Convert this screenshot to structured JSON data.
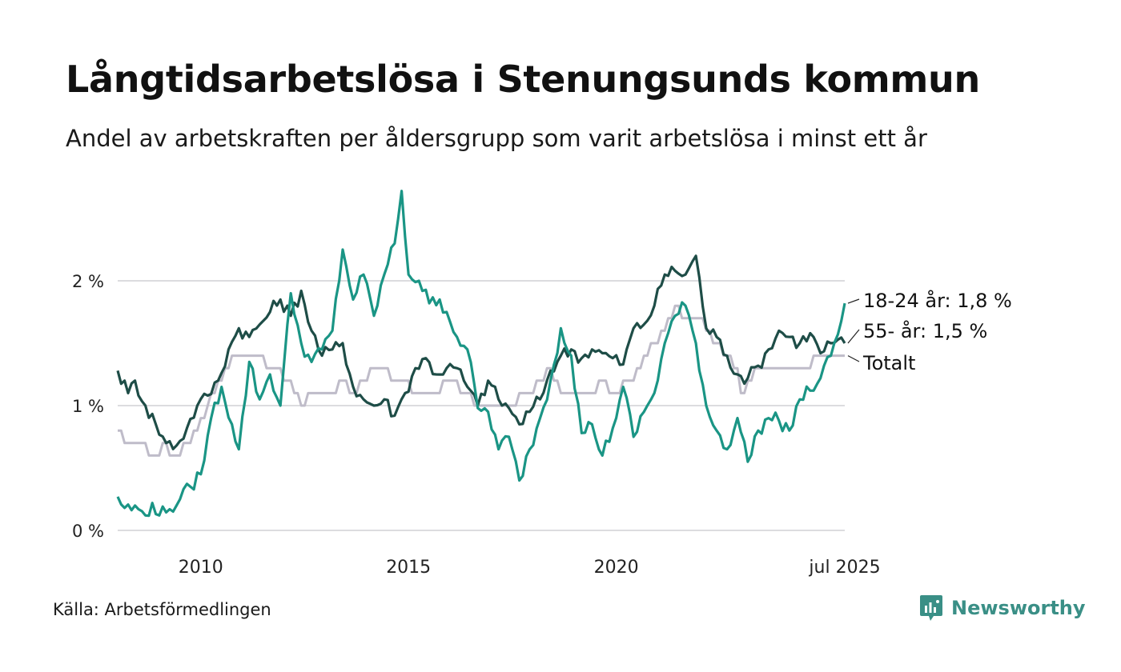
{
  "title": "Långtidsarbetslösa i Stenungsunds kommun",
  "subtitle": "Andel av arbetskraften per åldersgrupp som varit arbetslösa i minst ett år",
  "source": "Källa: Arbetsförmedlingen",
  "brand": {
    "name": "Newsworthy",
    "icon": "newsworthy-logo-icon",
    "color": "#3a8f86"
  },
  "chart_data": {
    "type": "line",
    "x_start": "2008-01",
    "x_end": "2025-07",
    "y_unit": "%",
    "ylim": [
      0,
      2.8
    ],
    "yticks": [
      0,
      1,
      2
    ],
    "ytick_labels": [
      "0 %",
      "1 %",
      "2 %"
    ],
    "xticks": [
      {
        "x": "2010-01",
        "label": "2010"
      },
      {
        "x": "2015-01",
        "label": "2015"
      },
      {
        "x": "2020-01",
        "label": "2020"
      },
      {
        "x": "2025-07",
        "label": "jul 2025"
      }
    ],
    "grid": true,
    "legend": "end-labels",
    "series": [
      {
        "name": "Totalt",
        "end_label": "Totalt",
        "color": "#bfbcc9",
        "anchors": [
          [
            "2008-01",
            0.8
          ],
          [
            "2008-03",
            0.7
          ],
          [
            "2008-09",
            0.7
          ],
          [
            "2008-11",
            0.6
          ],
          [
            "2009-03",
            0.7
          ],
          [
            "2009-05",
            0.6
          ],
          [
            "2009-09",
            0.7
          ],
          [
            "2009-12",
            0.8
          ],
          [
            "2010-03",
            1.0
          ],
          [
            "2010-08",
            1.3
          ],
          [
            "2010-12",
            1.4
          ],
          [
            "2011-06",
            1.4
          ],
          [
            "2011-09",
            1.3
          ],
          [
            "2012-03",
            1.2
          ],
          [
            "2012-06",
            1.0
          ],
          [
            "2012-09",
            1.1
          ],
          [
            "2013-03",
            1.1
          ],
          [
            "2013-06",
            1.2
          ],
          [
            "2013-09",
            1.1
          ],
          [
            "2013-12",
            1.2
          ],
          [
            "2014-03",
            1.3
          ],
          [
            "2014-12",
            1.2
          ],
          [
            "2015-03",
            1.1
          ],
          [
            "2015-09",
            1.1
          ],
          [
            "2016-01",
            1.2
          ],
          [
            "2016-06",
            1.1
          ],
          [
            "2016-09",
            1.0
          ],
          [
            "2017-06",
            1.0
          ],
          [
            "2017-12",
            1.1
          ],
          [
            "2018-06",
            1.3
          ],
          [
            "2018-09",
            1.1
          ],
          [
            "2019-06",
            1.1
          ],
          [
            "2019-09",
            1.2
          ],
          [
            "2019-12",
            1.1
          ],
          [
            "2020-06",
            1.2
          ],
          [
            "2020-09",
            1.4
          ],
          [
            "2021-01",
            1.5
          ],
          [
            "2021-06",
            1.8
          ],
          [
            "2021-09",
            1.7
          ],
          [
            "2022-01",
            1.7
          ],
          [
            "2022-06",
            1.5
          ],
          [
            "2022-09",
            1.4
          ],
          [
            "2022-12",
            1.3
          ],
          [
            "2023-01",
            1.1
          ],
          [
            "2023-06",
            1.3
          ],
          [
            "2024-06",
            1.3
          ],
          [
            "2025-01",
            1.4
          ],
          [
            "2025-07",
            1.4
          ]
        ]
      },
      {
        "name": "55- år",
        "end_label": "55- år: 1,5 %",
        "color": "#1e4d47",
        "anchors": [
          [
            "2008-01",
            1.28
          ],
          [
            "2008-04",
            1.1
          ],
          [
            "2008-06",
            1.2
          ],
          [
            "2008-09",
            1.0
          ],
          [
            "2008-12",
            0.85
          ],
          [
            "2009-03",
            0.7
          ],
          [
            "2009-06",
            0.68
          ],
          [
            "2009-09",
            0.82
          ],
          [
            "2009-12",
            1.0
          ],
          [
            "2010-03",
            1.08
          ],
          [
            "2010-06",
            1.2
          ],
          [
            "2010-09",
            1.45
          ],
          [
            "2010-12",
            1.62
          ],
          [
            "2011-03",
            1.55
          ],
          [
            "2011-06",
            1.65
          ],
          [
            "2011-09",
            1.75
          ],
          [
            "2011-12",
            1.85
          ],
          [
            "2012-03",
            1.72
          ],
          [
            "2012-06",
            1.92
          ],
          [
            "2012-09",
            1.6
          ],
          [
            "2012-12",
            1.4
          ],
          [
            "2013-03",
            1.45
          ],
          [
            "2013-06",
            1.5
          ],
          [
            "2013-09",
            1.15
          ],
          [
            "2013-12",
            1.05
          ],
          [
            "2014-03",
            1.0
          ],
          [
            "2014-06",
            1.05
          ],
          [
            "2014-09",
            0.92
          ],
          [
            "2014-12",
            1.1
          ],
          [
            "2015-03",
            1.3
          ],
          [
            "2015-06",
            1.38
          ],
          [
            "2015-09",
            1.25
          ],
          [
            "2015-12",
            1.3
          ],
          [
            "2016-03",
            1.3
          ],
          [
            "2016-06",
            1.15
          ],
          [
            "2016-09",
            1.0
          ],
          [
            "2016-12",
            1.2
          ],
          [
            "2017-03",
            1.05
          ],
          [
            "2017-06",
            0.98
          ],
          [
            "2017-09",
            0.85
          ],
          [
            "2017-12",
            0.95
          ],
          [
            "2018-03",
            1.05
          ],
          [
            "2018-06",
            1.28
          ],
          [
            "2018-09",
            1.4
          ],
          [
            "2018-12",
            1.45
          ],
          [
            "2019-03",
            1.38
          ],
          [
            "2019-06",
            1.45
          ],
          [
            "2019-09",
            1.42
          ],
          [
            "2019-12",
            1.38
          ],
          [
            "2020-03",
            1.33
          ],
          [
            "2020-06",
            1.62
          ],
          [
            "2020-09",
            1.65
          ],
          [
            "2020-12",
            1.8
          ],
          [
            "2021-03",
            2.05
          ],
          [
            "2021-06",
            2.08
          ],
          [
            "2021-09",
            2.05
          ],
          [
            "2021-12",
            2.2
          ],
          [
            "2022-03",
            1.62
          ],
          [
            "2022-06",
            1.55
          ],
          [
            "2022-09",
            1.4
          ],
          [
            "2022-12",
            1.25
          ],
          [
            "2023-03",
            1.22
          ],
          [
            "2023-06",
            1.32
          ],
          [
            "2023-09",
            1.45
          ],
          [
            "2023-12",
            1.6
          ],
          [
            "2024-03",
            1.55
          ],
          [
            "2024-06",
            1.5
          ],
          [
            "2024-09",
            1.58
          ],
          [
            "2024-12",
            1.42
          ],
          [
            "2025-03",
            1.5
          ],
          [
            "2025-07",
            1.5
          ]
        ]
      },
      {
        "name": "18-24 år",
        "end_label": "18-24 år: 1,8 %",
        "color": "#1a9585",
        "anchors": [
          [
            "2008-01",
            0.27
          ],
          [
            "2008-03",
            0.18
          ],
          [
            "2008-07",
            0.17
          ],
          [
            "2008-09",
            0.12
          ],
          [
            "2008-11",
            0.22
          ],
          [
            "2009-01",
            0.12
          ],
          [
            "2009-04",
            0.17
          ],
          [
            "2009-07",
            0.25
          ],
          [
            "2009-10",
            0.35
          ],
          [
            "2010-01",
            0.45
          ],
          [
            "2010-04",
            0.9
          ],
          [
            "2010-07",
            1.15
          ],
          [
            "2010-10",
            0.85
          ],
          [
            "2010-12",
            0.65
          ],
          [
            "2011-03",
            1.35
          ],
          [
            "2011-06",
            1.05
          ],
          [
            "2011-09",
            1.25
          ],
          [
            "2011-12",
            1.0
          ],
          [
            "2012-03",
            1.9
          ],
          [
            "2012-06",
            1.5
          ],
          [
            "2012-09",
            1.35
          ],
          [
            "2012-12",
            1.45
          ],
          [
            "2013-03",
            1.6
          ],
          [
            "2013-06",
            2.25
          ],
          [
            "2013-09",
            1.85
          ],
          [
            "2013-12",
            2.05
          ],
          [
            "2014-03",
            1.72
          ],
          [
            "2014-06",
            2.05
          ],
          [
            "2014-09",
            2.3
          ],
          [
            "2014-11",
            2.72
          ],
          [
            "2015-01",
            2.05
          ],
          [
            "2015-04",
            2.0
          ],
          [
            "2015-07",
            1.82
          ],
          [
            "2015-10",
            1.85
          ],
          [
            "2015-12",
            1.75
          ],
          [
            "2016-03",
            1.55
          ],
          [
            "2016-06",
            1.45
          ],
          [
            "2016-09",
            0.98
          ],
          [
            "2016-12",
            0.95
          ],
          [
            "2017-03",
            0.65
          ],
          [
            "2017-06",
            0.75
          ],
          [
            "2017-09",
            0.4
          ],
          [
            "2017-12",
            0.65
          ],
          [
            "2018-03",
            0.9
          ],
          [
            "2018-06",
            1.2
          ],
          [
            "2018-09",
            1.62
          ],
          [
            "2018-12",
            1.4
          ],
          [
            "2019-03",
            0.78
          ],
          [
            "2019-06",
            0.85
          ],
          [
            "2019-09",
            0.6
          ],
          [
            "2019-12",
            0.82
          ],
          [
            "2020-03",
            1.15
          ],
          [
            "2020-06",
            0.75
          ],
          [
            "2020-09",
            0.95
          ],
          [
            "2020-12",
            1.1
          ],
          [
            "2021-03",
            1.5
          ],
          [
            "2021-06",
            1.72
          ],
          [
            "2021-09",
            1.8
          ],
          [
            "2021-12",
            1.5
          ],
          [
            "2022-03",
            1.0
          ],
          [
            "2022-06",
            0.8
          ],
          [
            "2022-09",
            0.65
          ],
          [
            "2022-12",
            0.9
          ],
          [
            "2023-03",
            0.55
          ],
          [
            "2023-06",
            0.8
          ],
          [
            "2023-09",
            0.9
          ],
          [
            "2023-12",
            0.88
          ],
          [
            "2024-03",
            0.8
          ],
          [
            "2024-06",
            1.05
          ],
          [
            "2024-09",
            1.12
          ],
          [
            "2024-12",
            1.22
          ],
          [
            "2025-03",
            1.4
          ],
          [
            "2025-07",
            1.82
          ]
        ]
      }
    ]
  }
}
